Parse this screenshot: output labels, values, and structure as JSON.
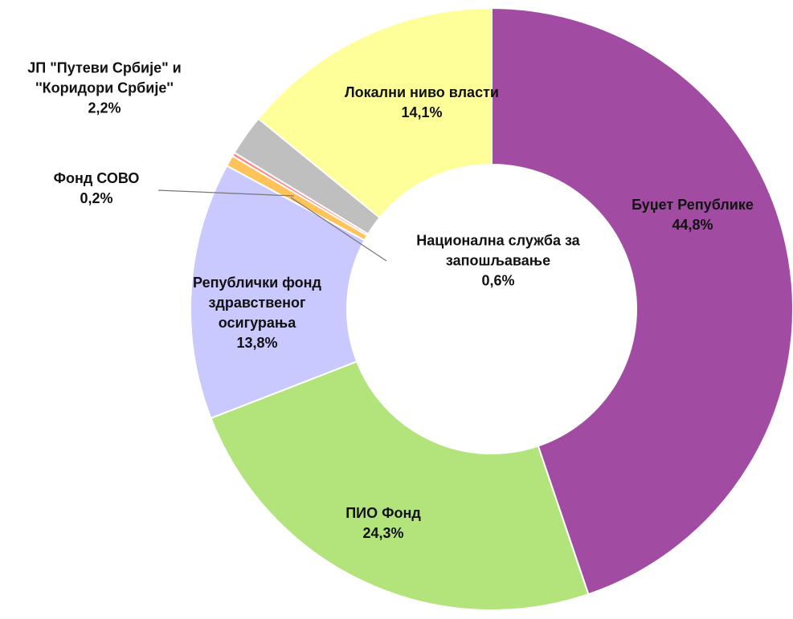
{
  "chart_data": {
    "type": "donut",
    "categories": [
      "Буџет Републике",
      "ПИО Фонд",
      "Републички фонд здравственог осигурања",
      "Национална служба за запошљавање",
      "Фонд СОВО",
      "ЈП \"Путеви Србије\" и ''Коридори Србије''",
      "Локални ниво власти"
    ],
    "values": [
      44.8,
      24.3,
      13.8,
      0.6,
      0.2,
      2.2,
      14.1
    ],
    "value_labels": [
      "44,8%",
      "24,3%",
      "13,8%",
      "0,6%",
      "0,2%",
      "2,2%",
      "14,1%"
    ],
    "colors": [
      "#a24ba3",
      "#b3e47b",
      "#c9c8ff",
      "#ffc35a",
      "#ff8a8a",
      "#bfbfbf",
      "#ffff99"
    ]
  }
}
